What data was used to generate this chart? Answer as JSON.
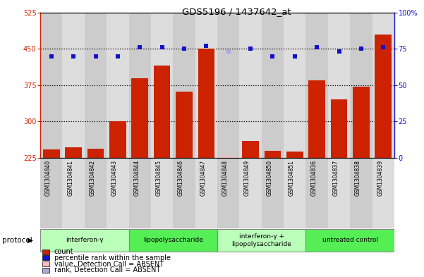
{
  "title": "GDS5196 / 1437642_at",
  "samples": [
    "GSM1304840",
    "GSM1304841",
    "GSM1304842",
    "GSM1304843",
    "GSM1304844",
    "GSM1304845",
    "GSM1304846",
    "GSM1304847",
    "GSM1304848",
    "GSM1304849",
    "GSM1304850",
    "GSM1304851",
    "GSM1304836",
    "GSM1304837",
    "GSM1304838",
    "GSM1304839"
  ],
  "counts": [
    242,
    247,
    244,
    300,
    390,
    415,
    362,
    450,
    228,
    260,
    240,
    238,
    385,
    345,
    372,
    480
  ],
  "is_absent": [
    false,
    false,
    false,
    false,
    false,
    false,
    false,
    false,
    true,
    false,
    false,
    false,
    false,
    false,
    false,
    false
  ],
  "percentile_ranks": [
    70,
    70,
    70,
    70,
    76,
    76,
    75,
    77,
    73,
    75,
    70,
    70,
    76,
    73,
    75,
    76
  ],
  "rank_is_absent": [
    false,
    false,
    false,
    false,
    false,
    false,
    false,
    false,
    true,
    false,
    false,
    false,
    false,
    false,
    false,
    false
  ],
  "ylim_left": [
    225,
    525
  ],
  "ylim_right": [
    0,
    100
  ],
  "yticks_left": [
    225,
    300,
    375,
    450,
    525
  ],
  "yticks_right": [
    0,
    25,
    50,
    75,
    100
  ],
  "hlines": [
    300,
    375,
    450
  ],
  "bar_color": "#cc2200",
  "dot_color": "#1111cc",
  "absent_bar_color": "#ffbbbb",
  "absent_dot_color": "#aaaadd",
  "protocols": [
    {
      "label": "interferon-γ",
      "start": 0,
      "end": 4,
      "color": "#bbffbb"
    },
    {
      "label": "lipopolysaccharide",
      "start": 4,
      "end": 8,
      "color": "#55ee55"
    },
    {
      "label": "interferon-γ +\nlipopolysaccharide",
      "start": 8,
      "end": 12,
      "color": "#bbffbb"
    },
    {
      "label": "untreated control",
      "start": 12,
      "end": 16,
      "color": "#55ee55"
    }
  ],
  "col_bg_even": "#cccccc",
  "col_bg_odd": "#dddddd",
  "plot_bg": "#ffffff"
}
